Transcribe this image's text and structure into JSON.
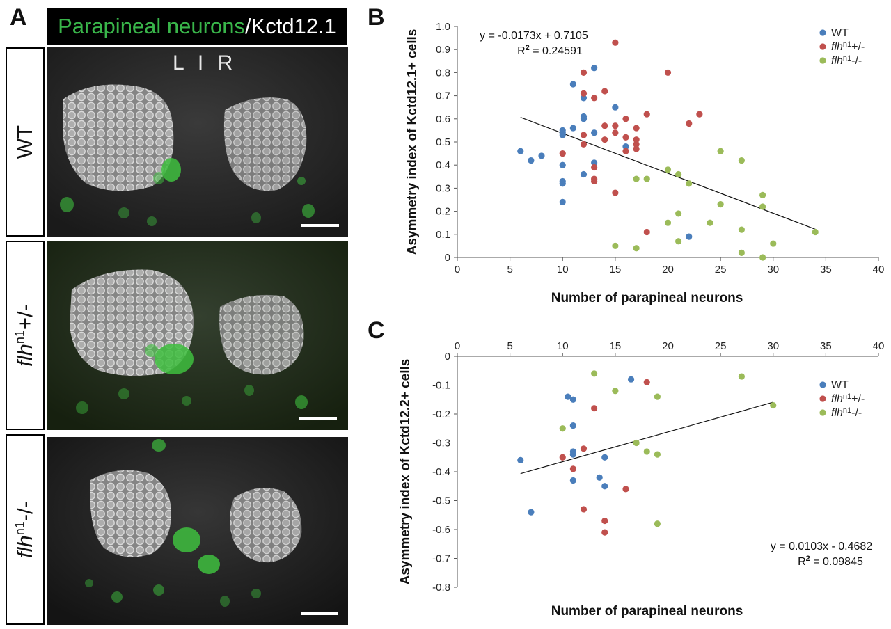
{
  "panel_a": {
    "letter": "A",
    "title_green": "Parapineal neurons",
    "title_white": "/Kctd12.1",
    "orientation": "L I R",
    "rows": [
      {
        "label": "WT",
        "italic": "",
        "sup": "",
        "tail": ""
      },
      {
        "label": "",
        "italic": "flh",
        "sup": "n1",
        "tail": "+/-"
      },
      {
        "label": "",
        "italic": "flh",
        "sup": "n1",
        "tail": "-/-"
      }
    ]
  },
  "chart_data": [
    {
      "panel": "B",
      "type": "scatter",
      "xlabel": "Number of parapineal neurons",
      "ylabel": "Asymmetry index of Kctd12.1+ cells",
      "xlim": [
        0,
        40
      ],
      "ylim": [
        0,
        1.0
      ],
      "xticks": [
        "0",
        "5",
        "10",
        "15",
        "20",
        "25",
        "30",
        "35",
        "40"
      ],
      "yticks": [
        "0",
        "0.1",
        "0.2",
        "0.3",
        "0.4",
        "0.5",
        "0.6",
        "0.7",
        "0.8",
        "0.9",
        "1.0"
      ],
      "legend_position": "top-right",
      "colors": {
        "wt": "#4a7ebb",
        "het": "#c0504d",
        "mut": "#9bbb59"
      },
      "legend": [
        {
          "key": "wt",
          "text": "WT",
          "italic": "",
          "sup": "",
          "tail": ""
        },
        {
          "key": "het",
          "text": "",
          "italic": "flh",
          "sup": "n1",
          "tail": "+/-"
        },
        {
          "key": "mut",
          "text": "",
          "italic": "flh",
          "sup": "n1",
          "tail": "-/-"
        }
      ],
      "equation": "y = -0.0173x + 0.7105",
      "r2_label": "R",
      "r2_sup": "2",
      "r2_value": " = 0.24591",
      "trendline": {
        "slope": -0.0173,
        "intercept": 0.7105,
        "x_range": [
          6,
          34
        ]
      },
      "series": [
        {
          "key": "wt",
          "name": "WT",
          "points": [
            [
              6,
              0.46
            ],
            [
              7,
              0.42
            ],
            [
              8,
              0.44
            ],
            [
              10,
              0.55
            ],
            [
              10,
              0.54
            ],
            [
              10,
              0.53
            ],
            [
              10,
              0.4
            ],
            [
              10,
              0.33
            ],
            [
              10,
              0.32
            ],
            [
              10,
              0.24
            ],
            [
              11,
              0.75
            ],
            [
              11,
              0.56
            ],
            [
              12,
              0.69
            ],
            [
              12,
              0.61
            ],
            [
              12,
              0.6
            ],
            [
              12,
              0.36
            ],
            [
              13,
              0.82
            ],
            [
              13,
              0.54
            ],
            [
              13,
              0.41
            ],
            [
              15,
              0.65
            ],
            [
              16,
              0.48
            ],
            [
              22,
              0.09
            ]
          ]
        },
        {
          "key": "het",
          "name": "flhn1+/-",
          "points": [
            [
              10,
              0.45
            ],
            [
              12,
              0.8
            ],
            [
              12,
              0.71
            ],
            [
              12,
              0.53
            ],
            [
              12,
              0.49
            ],
            [
              13,
              0.69
            ],
            [
              13,
              0.39
            ],
            [
              13,
              0.34
            ],
            [
              13,
              0.33
            ],
            [
              14,
              0.72
            ],
            [
              14,
              0.57
            ],
            [
              14,
              0.51
            ],
            [
              15,
              0.93
            ],
            [
              15,
              0.57
            ],
            [
              15,
              0.54
            ],
            [
              15,
              0.28
            ],
            [
              16,
              0.6
            ],
            [
              16,
              0.52
            ],
            [
              16,
              0.46
            ],
            [
              17,
              0.56
            ],
            [
              17,
              0.51
            ],
            [
              17,
              0.49
            ],
            [
              17,
              0.47
            ],
            [
              18,
              0.62
            ],
            [
              18,
              0.11
            ],
            [
              20,
              0.8
            ],
            [
              22,
              0.58
            ],
            [
              23,
              0.62
            ]
          ]
        },
        {
          "key": "mut",
          "name": "flhn1-/-",
          "points": [
            [
              15,
              0.05
            ],
            [
              17,
              0.34
            ],
            [
              17,
              0.04
            ],
            [
              18,
              0.34
            ],
            [
              20,
              0.38
            ],
            [
              20,
              0.15
            ],
            [
              21,
              0.36
            ],
            [
              21,
              0.19
            ],
            [
              21,
              0.07
            ],
            [
              22,
              0.32
            ],
            [
              24,
              0.15
            ],
            [
              25,
              0.46
            ],
            [
              25,
              0.23
            ],
            [
              27,
              0.42
            ],
            [
              27,
              0.12
            ],
            [
              27,
              0.02
            ],
            [
              29,
              0.27
            ],
            [
              29,
              0.22
            ],
            [
              29,
              0.0
            ],
            [
              30,
              0.06
            ],
            [
              34,
              0.11
            ]
          ]
        }
      ]
    },
    {
      "panel": "C",
      "type": "scatter",
      "xlabel": "Number of parapineal neurons",
      "ylabel": "Asymmetry index of Kctd12.2+ cells",
      "xlim": [
        0,
        40
      ],
      "ylim": [
        -0.8,
        0
      ],
      "xticks": [
        "0",
        "5",
        "10",
        "15",
        "20",
        "25",
        "30",
        "35",
        "40"
      ],
      "yticks": [
        "0",
        "-0.1",
        "-0.2",
        "-0.3",
        "-0.4",
        "-0.5",
        "-0.6",
        "-0.7",
        "-0.8"
      ],
      "legend_position": "right",
      "colors": {
        "wt": "#4a7ebb",
        "het": "#c0504d",
        "mut": "#9bbb59"
      },
      "legend": [
        {
          "key": "wt",
          "text": "WT",
          "italic": "",
          "sup": "",
          "tail": ""
        },
        {
          "key": "het",
          "text": "",
          "italic": "flh",
          "sup": "n1",
          "tail": "+/-"
        },
        {
          "key": "mut",
          "text": "",
          "italic": "flh",
          "sup": "n1",
          "tail": "-/-"
        }
      ],
      "equation": "y = 0.0103x - 0.4682",
      "r2_label": "R",
      "r2_sup": "2",
      "r2_value": " = 0.09845",
      "trendline": {
        "slope": 0.0103,
        "intercept": -0.4682,
        "x_range": [
          6,
          30
        ]
      },
      "series": [
        {
          "key": "wt",
          "name": "WT",
          "points": [
            [
              6,
              -0.36
            ],
            [
              7,
              -0.54
            ],
            [
              10.5,
              -0.14
            ],
            [
              11,
              -0.15
            ],
            [
              11,
              -0.24
            ],
            [
              11,
              -0.33
            ],
            [
              11,
              -0.34
            ],
            [
              11,
              -0.43
            ],
            [
              13.5,
              -0.42
            ],
            [
              14,
              -0.35
            ],
            [
              14,
              -0.45
            ],
            [
              16.5,
              -0.08
            ]
          ]
        },
        {
          "key": "het",
          "name": "flhn1+/-",
          "points": [
            [
              10,
              -0.35
            ],
            [
              11,
              -0.39
            ],
            [
              12,
              -0.32
            ],
            [
              12,
              -0.53
            ],
            [
              13,
              -0.18
            ],
            [
              14,
              -0.57
            ],
            [
              14,
              -0.61
            ],
            [
              16,
              -0.46
            ],
            [
              18,
              -0.09
            ]
          ]
        },
        {
          "key": "mut",
          "name": "flhn1-/-",
          "points": [
            [
              10,
              -0.25
            ],
            [
              13,
              -0.06
            ],
            [
              15,
              -0.12
            ],
            [
              17,
              -0.3
            ],
            [
              18,
              -0.33
            ],
            [
              19,
              -0.14
            ],
            [
              19,
              -0.34
            ],
            [
              19,
              -0.58
            ],
            [
              27,
              -0.07
            ],
            [
              30,
              -0.17
            ]
          ]
        }
      ]
    }
  ]
}
